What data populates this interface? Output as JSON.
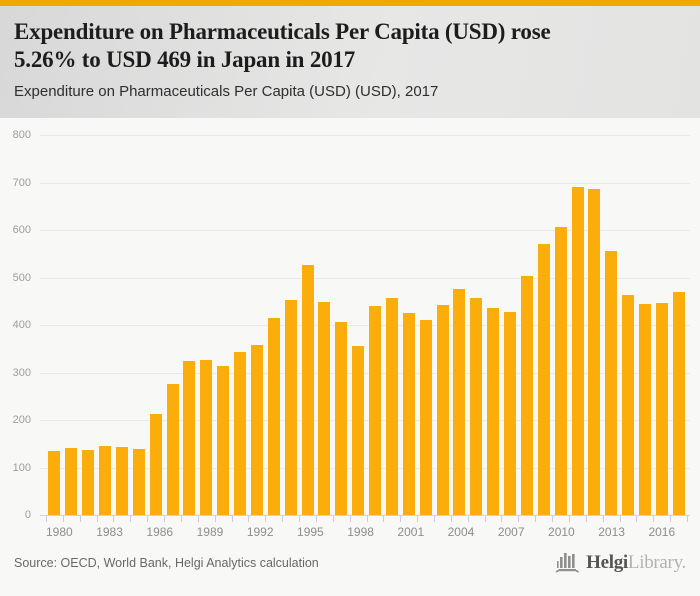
{
  "header": {
    "title_line1": "Expenditure on Pharmaceuticals Per Capita (USD) rose",
    "title_line2": "5.26% to USD 469 in Japan in 2017",
    "subtitle": "Expenditure on Pharmaceuticals Per Capita (USD) (USD), 2017"
  },
  "footer": {
    "source": "Source: OECD, World Bank, Helgi Analytics calculation",
    "brand": {
      "bold": "Helgi",
      "light": "Library."
    }
  },
  "colors": {
    "top_stripe": "#f2a705",
    "bar": "#faad0b",
    "gridline": "#e9e9e8",
    "axis_tick": "#c6cfdf"
  },
  "chart_data": {
    "type": "bar",
    "title": "Expenditure on Pharmaceuticals Per Capita (USD) (USD), 2017",
    "xlabel": "",
    "ylabel": "",
    "ylim": [
      0,
      800
    ],
    "ytick_interval": 100,
    "grid": true,
    "legend_position": "none",
    "x": [
      1980,
      1981,
      1982,
      1983,
      1984,
      1985,
      1986,
      1987,
      1988,
      1989,
      1990,
      1991,
      1992,
      1993,
      1994,
      1995,
      1996,
      1997,
      1998,
      1999,
      2000,
      2001,
      2002,
      2003,
      2004,
      2005,
      2006,
      2007,
      2008,
      2009,
      2010,
      2011,
      2012,
      2013,
      2014,
      2015,
      2016,
      2017
    ],
    "values": [
      134,
      142,
      136,
      146,
      143,
      140,
      212,
      275,
      324,
      326,
      314,
      344,
      357,
      414,
      452,
      527,
      448,
      406,
      355,
      439,
      456,
      425,
      410,
      443,
      475,
      456,
      435,
      428,
      504,
      571,
      607,
      690,
      687,
      556,
      463,
      445,
      446,
      469
    ],
    "xtick_labels": [
      "1980",
      "1983",
      "1986",
      "1989",
      "1992",
      "1995",
      "1998",
      "2001",
      "2004",
      "2007",
      "2010",
      "2013",
      "2016"
    ]
  }
}
